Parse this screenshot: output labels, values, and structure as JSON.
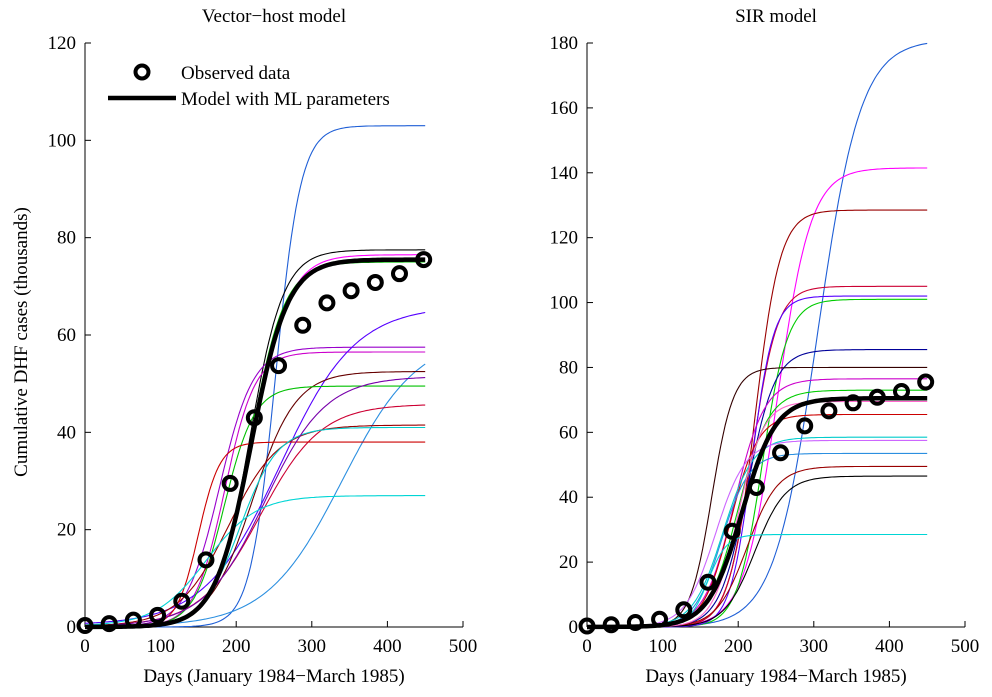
{
  "ylabel": "Cumulative DHF cases (thousands)",
  "chart_data": [
    {
      "type": "line",
      "title": "Vector−host model",
      "xlabel": "Days (January 1984−March 1985)",
      "ylabel": "Cumulative DHF cases (thousands)",
      "xlim": [
        0,
        500
      ],
      "ylim": [
        0,
        120
      ],
      "xticks": [
        0,
        100,
        200,
        300,
        400,
        500
      ],
      "yticks": [
        0,
        20,
        40,
        60,
        80,
        100,
        120
      ],
      "grid": false,
      "legend": {
        "placement": "top-left",
        "entries": [
          {
            "label": "Observed data",
            "marker": "circle"
          },
          {
            "label": "Model with ML parameters",
            "style": "thick-line"
          }
        ]
      },
      "observed": {
        "x": [
          0,
          32,
          64,
          96,
          128,
          160,
          192,
          224,
          256,
          288,
          320,
          352,
          384,
          416,
          448
        ],
        "y": [
          0.3,
          0.7,
          1.4,
          2.4,
          5.3,
          13.8,
          29.5,
          43.0,
          53.7,
          62.0,
          66.6,
          69.1,
          70.8,
          72.6,
          75.5
        ]
      },
      "ml_model": {
        "K": 75.5,
        "r": 0.0415,
        "t0": 220
      },
      "samples": [
        {
          "color": "#1f5fd6",
          "K": 103.0,
          "r": 0.06,
          "t0": 252
        },
        {
          "color": "#000000",
          "K": 77.5,
          "r": 0.045,
          "t0": 218
        },
        {
          "color": "#ff00ff",
          "K": 76.5,
          "r": 0.042,
          "t0": 222
        },
        {
          "color": "#00c000",
          "K": 75.0,
          "r": 0.044,
          "t0": 218
        },
        {
          "color": "#9900cc",
          "K": 57.5,
          "r": 0.045,
          "t0": 178
        },
        {
          "color": "#cc00cc",
          "K": 56.5,
          "r": 0.05,
          "t0": 185
        },
        {
          "color": "#5500ff",
          "K": 66.0,
          "r": 0.02,
          "t0": 258
        },
        {
          "color": "#2b8fe0",
          "K": 60.0,
          "r": 0.02,
          "t0": 340
        },
        {
          "color": "#660000",
          "K": 52.5,
          "r": 0.035,
          "t0": 222
        },
        {
          "color": "#00c000",
          "K": 49.5,
          "r": 0.05,
          "t0": 184
        },
        {
          "color": "#cc0033",
          "K": 45.8,
          "r": 0.025,
          "t0": 232
        },
        {
          "color": "#990000",
          "K": 41.5,
          "r": 0.03,
          "t0": 190
        },
        {
          "color": "#cc0000",
          "K": 38.0,
          "r": 0.07,
          "t0": 150
        },
        {
          "color": "#00cccc",
          "K": 41.0,
          "r": 0.04,
          "t0": 205
        },
        {
          "color": "#7700aa",
          "K": 51.5,
          "r": 0.025,
          "t0": 238
        },
        {
          "color": "#00d5d5",
          "K": 27.0,
          "r": 0.03,
          "t0": 160
        }
      ]
    },
    {
      "type": "line",
      "title": "SIR model",
      "xlabel": "Days (January 1984−March 1985)",
      "xlim": [
        0,
        500
      ],
      "ylim": [
        0,
        180
      ],
      "xticks": [
        0,
        100,
        200,
        300,
        400,
        500
      ],
      "yticks": [
        0,
        20,
        40,
        60,
        80,
        100,
        120,
        140,
        160,
        180
      ],
      "grid": false,
      "observed": {
        "x": [
          0,
          32,
          64,
          96,
          128,
          160,
          192,
          224,
          256,
          288,
          320,
          352,
          384,
          416,
          448
        ],
        "y": [
          0.3,
          0.7,
          1.4,
          2.4,
          5.3,
          13.8,
          29.5,
          43.0,
          53.7,
          62.0,
          66.6,
          69.1,
          70.8,
          72.6,
          75.5
        ]
      },
      "ml_model": {
        "K": 70.5,
        "r": 0.045,
        "t0": 205
      },
      "samples": [
        {
          "color": "#1f5fd6",
          "K": 181.0,
          "r": 0.035,
          "t0": 305
        },
        {
          "color": "#ff00ff",
          "K": 141.5,
          "r": 0.045,
          "t0": 252
        },
        {
          "color": "#990000",
          "K": 128.5,
          "r": 0.06,
          "t0": 222
        },
        {
          "color": "#cc0033",
          "K": 105.0,
          "r": 0.06,
          "t0": 218
        },
        {
          "color": "#00cc00",
          "K": 101.0,
          "r": 0.06,
          "t0": 232
        },
        {
          "color": "#5500ff",
          "K": 102.0,
          "r": 0.07,
          "t0": 218
        },
        {
          "color": "#000099",
          "K": 85.5,
          "r": 0.055,
          "t0": 212
        },
        {
          "color": "#330000",
          "K": 80.0,
          "r": 0.07,
          "t0": 165
        },
        {
          "color": "#cc00cc",
          "K": 76.5,
          "r": 0.05,
          "t0": 195
        },
        {
          "color": "#00cc00",
          "K": 73.0,
          "r": 0.05,
          "t0": 200
        },
        {
          "color": "#cc0000",
          "K": 65.5,
          "r": 0.055,
          "t0": 190
        },
        {
          "color": "#00cccc",
          "K": 58.5,
          "r": 0.05,
          "t0": 180
        },
        {
          "color": "#2b8fe0",
          "K": 53.5,
          "r": 0.055,
          "t0": 178
        },
        {
          "color": "#990000",
          "K": 49.5,
          "r": 0.05,
          "t0": 212
        },
        {
          "color": "#000000",
          "K": 46.5,
          "r": 0.05,
          "t0": 222
        },
        {
          "color": "#00d5d5",
          "K": 28.5,
          "r": 0.08,
          "t0": 160
        },
        {
          "color": "#cc66ff",
          "K": 57.5,
          "r": 0.05,
          "t0": 170
        },
        {
          "color": "#ff66cc",
          "K": 69.5,
          "r": 0.06,
          "t0": 200
        }
      ]
    }
  ]
}
